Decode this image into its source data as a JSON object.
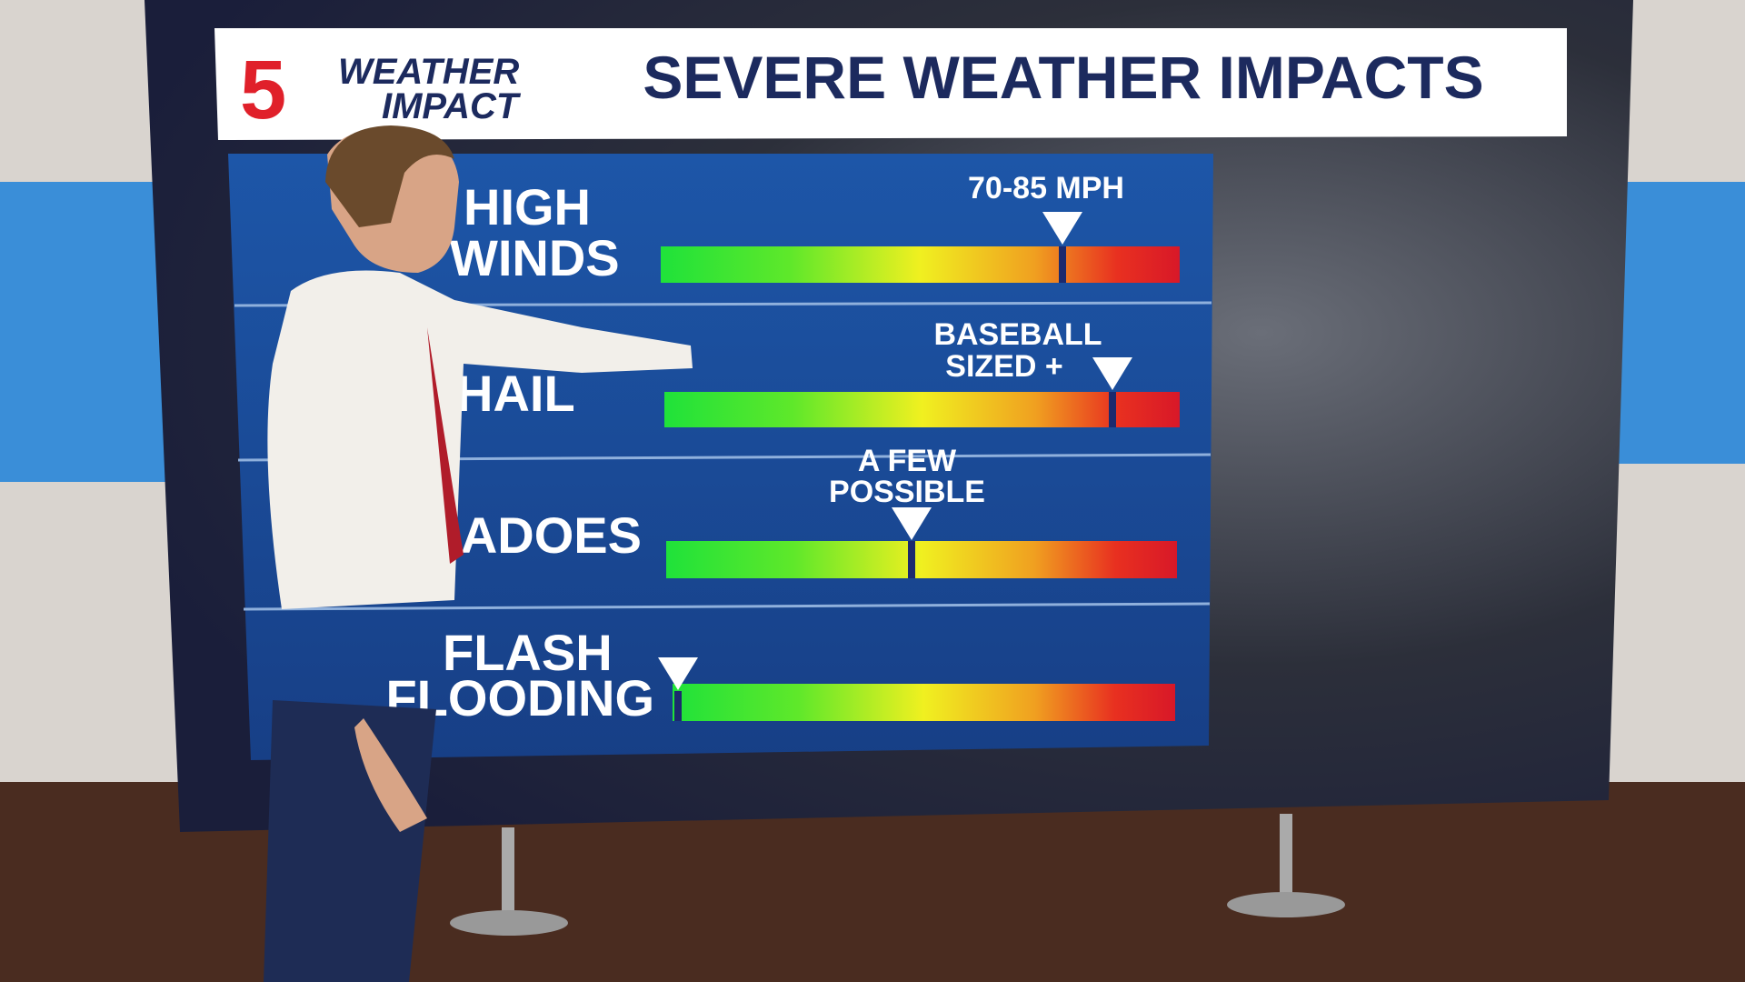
{
  "header": {
    "logo_number": "5",
    "brand_top": "WEATHER",
    "brand_bottom": "IMPACT",
    "title": "SEVERE WEATHER IMPACTS"
  },
  "rows": [
    {
      "label": [
        "HIGH",
        "WINDS"
      ],
      "marker_label": [
        "70-85 MPH"
      ]
    },
    {
      "label": [
        "HAIL"
      ],
      "marker_label": [
        "BASEBALL",
        "SIZED +"
      ]
    },
    {
      "label": [
        "TORNADOES"
      ],
      "marker_label": [
        "A FEW",
        "POSSIBLE"
      ]
    },
    {
      "label": [
        "FLASH",
        "FLOODING"
      ]
    }
  ]
}
